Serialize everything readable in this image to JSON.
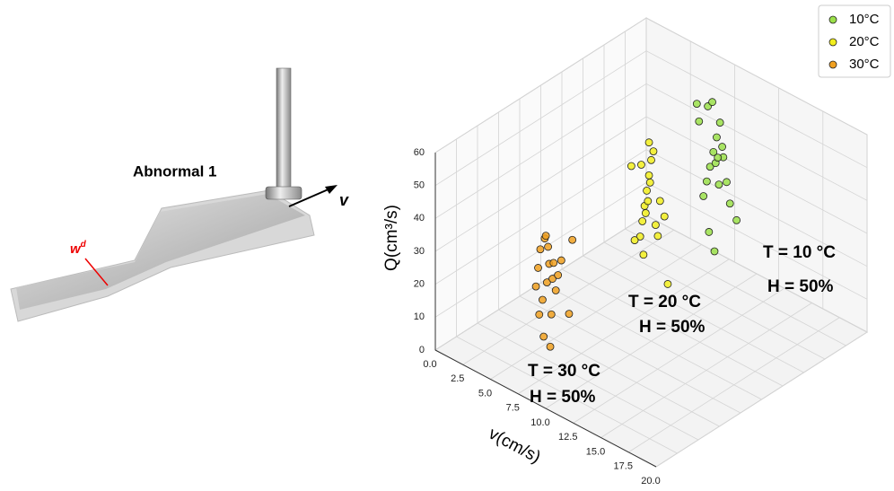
{
  "illustration": {
    "title": "Abnormal 1",
    "velocity_label": "v",
    "width_label": "w",
    "width_label_sup": "d"
  },
  "chart_data": {
    "type": "scatter3d",
    "xlabel": "v(cm/s)",
    "ylabel": "Q(cm³/s)",
    "xlim": [
      0,
      20
    ],
    "ylim": [
      0,
      60
    ],
    "xticks": [
      {
        "value": 0,
        "label": "0.0"
      },
      {
        "value": 2.5,
        "label": "2.5"
      },
      {
        "value": 5,
        "label": "5.0"
      },
      {
        "value": 7.5,
        "label": "7.5"
      },
      {
        "value": 10,
        "label": "10.0"
      },
      {
        "value": 12.5,
        "label": "12.5"
      },
      {
        "value": 15,
        "label": "15.0"
      },
      {
        "value": 17.5,
        "label": "17.5"
      },
      {
        "value": 20,
        "label": "20.0"
      }
    ],
    "yticks": [
      0,
      10,
      20,
      30,
      40,
      50,
      60
    ],
    "grid": true,
    "legend": "upper right",
    "series": [
      {
        "name": "10°C",
        "color": "#9be04a",
        "x": [
          9.0,
          9.3,
          9.6,
          9.9,
          10.2,
          10.5,
          10.8,
          11.1,
          9.4,
          9.8,
          10.1,
          10.4,
          10.7,
          11.4,
          8.6,
          8.4,
          12,
          9.5,
          10.0,
          10.3
        ],
        "values": [
          30,
          35,
          40,
          45,
          50,
          55,
          45,
          38,
          58,
          60,
          42,
          36,
          48,
          32,
          52,
          57,
          28,
          20,
          15,
          44
        ]
      },
      {
        "name": "20°C",
        "color": "#f2ee1e",
        "x": [
          9.0,
          9.2,
          9.4,
          9.6,
          9.8,
          10.0,
          10.2,
          9.5,
          9.7,
          9.9,
          10.4,
          10.8,
          11.2,
          8.5,
          8.2,
          9.1,
          9.3,
          10.6,
          11.5,
          9.8
        ],
        "values": [
          30,
          35,
          40,
          45,
          50,
          55,
          58,
          38,
          42,
          48,
          36,
          44,
          40,
          28,
          50,
          52,
          25,
          33,
          20,
          60
        ]
      },
      {
        "name": "30°C",
        "color": "#f0a020",
        "x": [
          7.2,
          7.4,
          7.6,
          7.8,
          8.0,
          8.2,
          8.4,
          8.6,
          8.8,
          9.0,
          7.5,
          8.1,
          8.7,
          9.5,
          10.2,
          7.9,
          8.5,
          9.2,
          10.5,
          8.3
        ],
        "values": [
          28,
          34,
          40,
          25,
          44,
          31,
          37,
          22,
          38,
          30,
          20,
          45,
          33,
          40,
          25,
          14,
          12,
          35,
          48,
          42
        ]
      }
    ],
    "annotations": [
      "T = 10 °C",
      "H = 50%",
      "T = 20 °C",
      "H = 50%",
      "T = 30 °C",
      "H = 50%"
    ]
  }
}
